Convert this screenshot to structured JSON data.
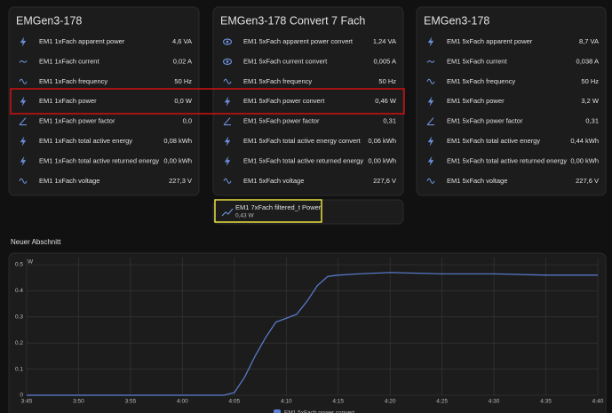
{
  "cards": [
    {
      "title": "EMGen3-178",
      "rows": [
        {
          "name": "EM1 1xFach apparent power",
          "value": "4,6 VA"
        },
        {
          "name": "EM1 1xFach current",
          "value": "0,02 A"
        },
        {
          "name": "EM1 1xFach frequency",
          "value": "50 Hz"
        },
        {
          "name": "EM1 1xFach power",
          "value": "0,0 W"
        },
        {
          "name": "EM1 1xFach power factor",
          "value": "0,0"
        },
        {
          "name": "EM1 1xFach total active energy",
          "value": "0,08 kWh"
        },
        {
          "name": "EM1 1xFach total active returned energy",
          "value": "0,00 kWh"
        },
        {
          "name": "EM1 1xFach voltage",
          "value": "227,3 V"
        }
      ]
    },
    {
      "title": "EMGen3-178 Convert 7 Fach",
      "rows": [
        {
          "name": "EM1 5xFach apparent power convert",
          "value": "1,24 VA"
        },
        {
          "name": "EM1 5xFach current convert",
          "value": "0,005 A"
        },
        {
          "name": "EM1 5xFach frequency",
          "value": "50 Hz"
        },
        {
          "name": "EM1 5xFach power convert",
          "value": "0,46 W"
        },
        {
          "name": "EM1 5xFach power factor",
          "value": "0,31"
        },
        {
          "name": "EM1 5xFach total active energy convert",
          "value": "0,06 kWh"
        },
        {
          "name": "EM1 5xFach total active returned energy",
          "value": "0,00 kWh"
        },
        {
          "name": "EM1 5xFach voltage",
          "value": "227,6 V"
        }
      ]
    },
    {
      "title": "EMGen3-178",
      "rows": [
        {
          "name": "EM1 5xFach apparent power",
          "value": "8,7 VA"
        },
        {
          "name": "EM1 5xFach current",
          "value": "0,038 A"
        },
        {
          "name": "EM1 5xFach frequency",
          "value": "50 Hz"
        },
        {
          "name": "EM1 5xFach power",
          "value": "3,2 W"
        },
        {
          "name": "EM1 5xFach power factor",
          "value": "0,31"
        },
        {
          "name": "EM1 5xFach total active energy",
          "value": "0,44 kWh"
        },
        {
          "name": "EM1 5xFach total active returned energy",
          "value": "0,00 kWh"
        },
        {
          "name": "EM1 5xFach voltage",
          "value": "227,6 V"
        }
      ]
    }
  ],
  "tile": {
    "name": "EM1 7xFach filtered_t Power",
    "state": "0,43 W"
  },
  "section": {
    "title": "Neuer Abschnitt"
  },
  "chart_data": {
    "type": "line",
    "y_unit": "W",
    "x": [
      "3:45",
      "4:04",
      "4:05",
      "4:06",
      "4:07",
      "4:08",
      "4:09",
      "4:10",
      "4:11",
      "4:12",
      "4:13",
      "4:14",
      "4:15",
      "4:17",
      "4:20",
      "4:25",
      "4:30",
      "4:35",
      "4:40"
    ],
    "series": [
      {
        "name": "EM1 5xFach power convert",
        "color": "#5b7fd6",
        "values": [
          0,
          0,
          0.01,
          0.07,
          0.15,
          0.22,
          0.28,
          0.295,
          0.31,
          0.36,
          0.42,
          0.455,
          0.46,
          0.465,
          0.47,
          0.465,
          0.465,
          0.46,
          0.46
        ]
      }
    ],
    "xlim": [
      "3:45",
      "4:40"
    ],
    "xticks": [
      "3:45",
      "3:50",
      "3:55",
      "4:00",
      "4:05",
      "4:10",
      "4:15",
      "4:20",
      "4:25",
      "4:30",
      "4:35",
      "4:40"
    ],
    "ylim": [
      0,
      0.5
    ],
    "yticks": [
      0,
      0.1,
      0.2,
      0.3,
      0.4,
      0.5
    ],
    "grid": true
  }
}
